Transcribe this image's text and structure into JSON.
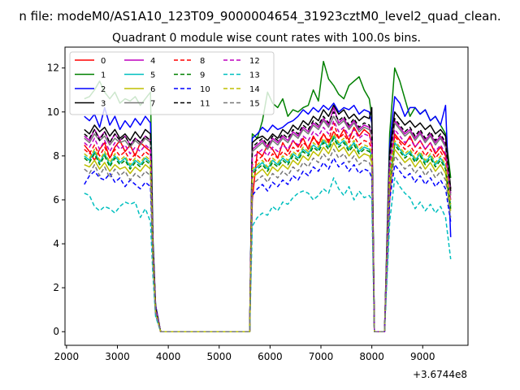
{
  "chart_data": {
    "type": "line",
    "suptitle": "n file: modeM0/AS1A10_123T09_9000004654_31923cztM0_level2_quad_clean.",
    "title": "Quadrant 0 module wise count rates with 100.0s bins.",
    "xlabel": "",
    "ylabel": "",
    "x_offset_label": "+3.6744e8",
    "xlim": [
      1970,
      9890
    ],
    "ylim": [
      -0.62,
      12.95
    ],
    "x_ticks": [
      2000,
      3000,
      4000,
      5000,
      6000,
      7000,
      8000,
      9000
    ],
    "y_ticks": [
      0,
      2,
      4,
      6,
      8,
      10,
      12
    ],
    "legend": {
      "location": "top-left",
      "columns": 4
    },
    "x": [
      2350,
      2450,
      2550,
      2650,
      2750,
      2850,
      2950,
      3050,
      3150,
      3250,
      3350,
      3450,
      3550,
      3650,
      3700,
      3750,
      3850,
      4000,
      5000,
      5550,
      5600,
      5650,
      5750,
      5850,
      5950,
      6050,
      6150,
      6250,
      6350,
      6450,
      6550,
      6650,
      6750,
      6850,
      6950,
      7050,
      7150,
      7250,
      7350,
      7450,
      7550,
      7650,
      7750,
      7850,
      7950,
      8000,
      8050,
      8150,
      8200,
      8250,
      8350,
      8450,
      8550,
      8650,
      8750,
      8850,
      8950,
      9050,
      9150,
      9250,
      9350,
      9450,
      9550
    ],
    "series": [
      {
        "name": "0",
        "color": "#ff0000",
        "dash": "solid",
        "values": [
          8.5,
          8.2,
          7.8,
          8.3,
          8.6,
          7.9,
          8.4,
          8.7,
          8.2,
          8.5,
          8.0,
          8.6,
          8.4,
          8.2,
          3.5,
          1.0,
          0,
          0,
          0,
          0,
          0,
          6.0,
          8.2,
          8.0,
          8.5,
          8.3,
          7.9,
          8.6,
          8.2,
          8.7,
          8.4,
          8.8,
          8.3,
          8.9,
          8.5,
          9.0,
          8.6,
          9.1,
          8.8,
          9.2,
          8.7,
          9.3,
          8.9,
          9.2,
          9.0,
          8.5,
          0,
          0,
          0,
          0,
          6.0,
          9.0,
          8.7,
          8.5,
          8.9,
          8.4,
          8.7,
          8.3,
          8.6,
          8.1,
          8.4,
          8.0,
          6.5
        ]
      },
      {
        "name": "1",
        "color": "#008000",
        "dash": "solid",
        "values": [
          10.6,
          10.7,
          11.0,
          11.4,
          10.9,
          10.6,
          10.9,
          10.4,
          10.6,
          10.5,
          10.7,
          10.3,
          10.6,
          10.9,
          4.2,
          1.2,
          0,
          0,
          0,
          0,
          0,
          9.0,
          8.8,
          9.6,
          10.9,
          10.4,
          10.2,
          10.6,
          9.8,
          10.1,
          10.0,
          10.2,
          10.3,
          11.0,
          10.5,
          12.3,
          11.5,
          11.2,
          10.8,
          10.6,
          11.2,
          11.4,
          11.6,
          11.0,
          10.6,
          9.8,
          0,
          0,
          0,
          0,
          9.0,
          12.0,
          11.4,
          10.6,
          9.8,
          10.2,
          9.9,
          10.1,
          9.6,
          9.8,
          9.4,
          9.0,
          7.0
        ]
      },
      {
        "name": "2",
        "color": "#0000ff",
        "dash": "solid",
        "values": [
          9.8,
          9.6,
          9.9,
          9.3,
          10.2,
          9.4,
          9.8,
          9.2,
          9.6,
          9.3,
          9.7,
          9.4,
          9.8,
          9.5,
          4.0,
          1.2,
          0,
          0,
          0,
          0,
          0,
          8.8,
          9.0,
          9.3,
          9.1,
          9.4,
          9.2,
          9.3,
          9.5,
          9.6,
          9.8,
          10.1,
          9.9,
          10.2,
          10.0,
          10.3,
          10.1,
          10.4,
          10.0,
          10.2,
          10.1,
          10.3,
          9.9,
          10.1,
          10.0,
          9.5,
          0,
          0,
          0,
          0,
          8.5,
          10.7,
          10.4,
          9.8,
          10.2,
          10.2,
          9.9,
          10.1,
          9.6,
          9.8,
          9.4,
          10.3,
          4.3
        ]
      },
      {
        "name": "3",
        "color": "#000000",
        "dash": "solid",
        "values": [
          9.2,
          9.0,
          9.4,
          9.1,
          9.3,
          8.9,
          9.2,
          8.8,
          9.0,
          8.7,
          9.1,
          8.8,
          9.2,
          9.0,
          3.9,
          1.1,
          0,
          0,
          0,
          0,
          0,
          8.6,
          8.8,
          8.9,
          8.7,
          9.0,
          8.8,
          9.2,
          9.0,
          9.4,
          9.2,
          9.6,
          9.4,
          9.8,
          9.6,
          10.1,
          9.8,
          10.3,
          9.9,
          10.1,
          9.7,
          9.9,
          9.6,
          9.8,
          9.7,
          10.2,
          0,
          0,
          0,
          0,
          8.2,
          10.0,
          9.7,
          9.4,
          9.6,
          9.3,
          9.5,
          9.2,
          9.4,
          9.0,
          9.2,
          8.9,
          6.5
        ]
      },
      {
        "name": "4",
        "color": "#bf00bf",
        "dash": "solid",
        "values": [
          8.9,
          8.7,
          9.2,
          8.8,
          9.1,
          8.6,
          9.0,
          8.7,
          8.9,
          8.5,
          8.8,
          8.6,
          8.9,
          8.7,
          3.7,
          1.1,
          0,
          0,
          0,
          0,
          0,
          8.3,
          8.5,
          8.7,
          8.4,
          8.8,
          8.6,
          8.9,
          8.7,
          9.1,
          8.9,
          9.3,
          9.1,
          9.5,
          9.3,
          9.7,
          9.4,
          10.2,
          9.5,
          9.7,
          9.3,
          9.6,
          9.2,
          9.4,
          9.3,
          9.0,
          0,
          0,
          0,
          0,
          7.8,
          9.6,
          9.3,
          9.0,
          9.2,
          8.8,
          9.1,
          8.7,
          9.0,
          8.6,
          8.9,
          8.5,
          6.3
        ]
      },
      {
        "name": "5",
        "color": "#00bfbf",
        "dash": "solid",
        "values": [
          8.0,
          7.8,
          8.2,
          7.7,
          8.1,
          7.6,
          8.0,
          7.7,
          7.9,
          7.5,
          7.8,
          7.6,
          7.9,
          7.7,
          3.3,
          0.9,
          0,
          0,
          0,
          0,
          0,
          7.3,
          7.5,
          7.7,
          7.4,
          7.8,
          7.6,
          7.9,
          7.7,
          8.1,
          7.9,
          8.3,
          8.1,
          8.5,
          8.3,
          8.7,
          8.4,
          8.9,
          8.5,
          8.7,
          8.3,
          8.6,
          8.2,
          8.4,
          8.3,
          8.0,
          0,
          0,
          0,
          0,
          7.0,
          8.6,
          8.3,
          8.0,
          8.2,
          7.8,
          8.1,
          7.7,
          8.0,
          7.6,
          7.9,
          7.5,
          5.7
        ]
      },
      {
        "name": "6",
        "color": "#bfbf00",
        "dash": "solid",
        "values": [
          7.6,
          7.5,
          7.8,
          7.4,
          7.7,
          7.3,
          7.6,
          7.4,
          7.5,
          7.2,
          7.5,
          7.3,
          7.6,
          7.4,
          3.2,
          0.9,
          0,
          0,
          0,
          0,
          0,
          7.0,
          7.2,
          7.4,
          7.1,
          7.5,
          7.3,
          7.6,
          7.4,
          7.8,
          7.6,
          8.0,
          7.8,
          8.2,
          8.0,
          8.4,
          8.1,
          8.6,
          8.2,
          8.4,
          8.0,
          8.3,
          7.9,
          8.1,
          8.0,
          7.7,
          0,
          0,
          0,
          0,
          6.7,
          8.3,
          8.0,
          7.7,
          7.9,
          7.5,
          7.8,
          7.4,
          7.7,
          7.3,
          7.6,
          7.2,
          5.5
        ]
      },
      {
        "name": "7",
        "color": "#777777",
        "dash": "solid",
        "values": [
          8.8,
          8.6,
          9.0,
          8.7,
          8.9,
          8.5,
          8.8,
          8.6,
          8.7,
          8.4,
          8.7,
          8.5,
          8.8,
          8.6,
          3.7,
          1.0,
          0,
          0,
          0,
          0,
          0,
          8.2,
          8.4,
          8.6,
          8.3,
          8.7,
          8.5,
          8.8,
          8.6,
          9.0,
          8.8,
          9.2,
          9.0,
          9.4,
          9.2,
          9.6,
          9.3,
          9.8,
          9.4,
          9.6,
          9.2,
          9.5,
          9.1,
          9.3,
          9.2,
          8.9,
          0,
          0,
          0,
          0,
          7.7,
          9.5,
          9.2,
          8.9,
          9.1,
          8.7,
          9.0,
          8.6,
          8.9,
          8.5,
          8.8,
          8.4,
          6.2
        ]
      },
      {
        "name": "8",
        "color": "#ff0000",
        "dash": "dashed",
        "values": [
          8.3,
          8.1,
          8.5,
          8.0,
          8.4,
          7.9,
          8.3,
          8.0,
          8.2,
          7.8,
          8.1,
          7.9,
          8.2,
          8.0,
          3.4,
          1.0,
          0,
          0,
          0,
          0,
          0,
          7.6,
          7.8,
          8.0,
          7.7,
          8.1,
          7.9,
          8.2,
          8.0,
          8.4,
          8.2,
          8.6,
          8.4,
          8.8,
          8.6,
          9.0,
          8.7,
          9.5,
          8.8,
          9.0,
          8.6,
          8.9,
          8.5,
          8.7,
          8.6,
          8.3,
          0,
          0,
          0,
          0,
          7.2,
          8.9,
          8.6,
          8.3,
          8.5,
          8.1,
          8.4,
          8.0,
          8.3,
          7.9,
          8.2,
          7.8,
          5.9
        ]
      },
      {
        "name": "9",
        "color": "#008000",
        "dash": "dashed",
        "values": [
          7.9,
          7.7,
          8.1,
          7.6,
          8.0,
          7.5,
          7.9,
          7.6,
          7.8,
          7.4,
          7.7,
          7.5,
          7.8,
          7.6,
          3.3,
          0.9,
          0,
          0,
          0,
          0,
          0,
          7.2,
          7.4,
          7.6,
          7.3,
          7.7,
          7.5,
          7.8,
          7.6,
          8.0,
          7.8,
          8.2,
          8.0,
          8.4,
          8.2,
          8.6,
          8.3,
          8.8,
          8.4,
          8.6,
          8.2,
          8.5,
          8.1,
          8.3,
          8.2,
          7.9,
          0,
          0,
          0,
          0,
          6.9,
          8.5,
          8.2,
          7.9,
          8.1,
          7.7,
          8.0,
          7.6,
          7.9,
          7.5,
          7.8,
          7.4,
          5.6
        ]
      },
      {
        "name": "10",
        "color": "#0000ff",
        "dash": "dashed",
        "values": [
          6.7,
          7.1,
          7.3,
          7.0,
          6.9,
          7.2,
          6.8,
          7.0,
          6.6,
          6.9,
          6.7,
          6.5,
          6.8,
          6.6,
          3.0,
          0.8,
          0,
          0,
          0,
          0,
          0,
          6.2,
          6.5,
          6.7,
          6.4,
          6.8,
          6.6,
          6.9,
          6.7,
          7.1,
          6.9,
          7.3,
          7.1,
          7.5,
          7.3,
          7.7,
          7.4,
          7.9,
          7.5,
          7.7,
          7.3,
          7.6,
          7.2,
          7.4,
          7.3,
          7.0,
          0,
          0,
          0,
          0,
          6.0,
          7.6,
          7.3,
          7.0,
          7.2,
          6.8,
          7.1,
          6.7,
          7.0,
          6.6,
          6.9,
          6.5,
          5.0
        ]
      },
      {
        "name": "11",
        "color": "#000000",
        "dash": "dashed",
        "values": [
          9.0,
          8.8,
          9.2,
          8.7,
          9.1,
          8.6,
          9.0,
          8.7,
          8.9,
          8.5,
          8.8,
          8.6,
          8.9,
          8.7,
          3.8,
          1.1,
          0,
          0,
          0,
          0,
          0,
          8.4,
          8.6,
          8.8,
          8.5,
          8.9,
          8.7,
          9.0,
          8.8,
          9.2,
          9.0,
          9.4,
          9.2,
          9.6,
          9.4,
          9.8,
          9.5,
          10.0,
          9.6,
          9.8,
          9.4,
          9.7,
          9.3,
          9.5,
          9.4,
          9.1,
          0,
          0,
          0,
          0,
          7.9,
          9.7,
          9.4,
          9.1,
          9.3,
          8.9,
          9.2,
          8.8,
          9.1,
          8.7,
          9.0,
          8.6,
          6.4
        ]
      },
      {
        "name": "12",
        "color": "#bf00bf",
        "dash": "dashed",
        "values": [
          8.6,
          8.4,
          8.8,
          8.3,
          8.7,
          8.2,
          8.6,
          8.3,
          8.5,
          8.1,
          8.4,
          8.2,
          8.5,
          8.3,
          3.6,
          1.0,
          0,
          0,
          0,
          0,
          0,
          7.9,
          8.1,
          8.3,
          8.0,
          8.4,
          8.2,
          8.5,
          8.3,
          8.7,
          8.5,
          8.9,
          8.7,
          9.1,
          8.9,
          9.3,
          9.0,
          9.6,
          9.1,
          9.3,
          8.9,
          9.2,
          8.8,
          9.0,
          8.9,
          8.6,
          0,
          0,
          0,
          0,
          7.5,
          9.2,
          8.9,
          8.6,
          8.8,
          8.4,
          8.7,
          8.3,
          8.6,
          8.2,
          8.5,
          8.1,
          6.0
        ]
      },
      {
        "name": "13",
        "color": "#00bfbf",
        "dash": "dashed",
        "values": [
          6.3,
          6.2,
          5.7,
          5.5,
          5.7,
          5.6,
          5.4,
          5.7,
          5.9,
          5.8,
          5.9,
          5.2,
          5.6,
          5.0,
          2.5,
          0.7,
          0,
          0,
          0,
          0,
          0,
          4.8,
          5.2,
          5.4,
          5.3,
          5.7,
          5.5,
          5.9,
          5.8,
          6.1,
          6.3,
          6.4,
          6.3,
          6.0,
          6.2,
          6.5,
          6.3,
          7.0,
          6.5,
          6.2,
          6.6,
          6.0,
          6.4,
          6.1,
          6.2,
          6.0,
          0,
          0,
          0,
          0,
          5.0,
          7.0,
          6.6,
          6.3,
          6.1,
          5.6,
          5.9,
          5.5,
          5.8,
          5.4,
          5.7,
          5.2,
          3.3
        ]
      },
      {
        "name": "14",
        "color": "#bfbf00",
        "dash": "dashed",
        "values": [
          8.1,
          7.9,
          8.3,
          7.8,
          8.2,
          7.7,
          8.1,
          7.8,
          8.0,
          7.6,
          7.9,
          7.7,
          8.0,
          7.8,
          3.3,
          0.9,
          0,
          0,
          0,
          0,
          0,
          7.4,
          7.6,
          7.8,
          7.5,
          7.9,
          7.7,
          8.0,
          7.8,
          8.2,
          8.0,
          8.4,
          8.2,
          8.6,
          8.4,
          8.8,
          8.5,
          9.0,
          8.6,
          8.8,
          8.4,
          8.7,
          8.3,
          8.5,
          8.4,
          8.1,
          0,
          0,
          0,
          0,
          7.1,
          8.7,
          8.4,
          8.1,
          8.3,
          7.9,
          8.2,
          7.8,
          8.1,
          7.7,
          8.0,
          7.6,
          5.8
        ]
      },
      {
        "name": "15",
        "color": "#777777",
        "dash": "dashed",
        "values": [
          7.4,
          7.2,
          7.6,
          7.1,
          7.5,
          7.0,
          7.4,
          7.1,
          7.3,
          6.9,
          7.2,
          7.0,
          7.3,
          7.1,
          3.1,
          0.9,
          0,
          0,
          0,
          0,
          0,
          6.7,
          6.9,
          7.1,
          6.8,
          7.2,
          7.0,
          7.3,
          7.1,
          7.5,
          7.3,
          7.7,
          7.5,
          7.9,
          7.7,
          8.1,
          7.8,
          8.3,
          7.9,
          8.1,
          7.7,
          8.0,
          7.6,
          7.8,
          7.7,
          7.4,
          0,
          0,
          0,
          0,
          6.4,
          8.0,
          7.7,
          7.4,
          7.6,
          7.2,
          7.5,
          7.1,
          7.4,
          7.0,
          7.3,
          6.9,
          5.2
        ]
      }
    ]
  }
}
